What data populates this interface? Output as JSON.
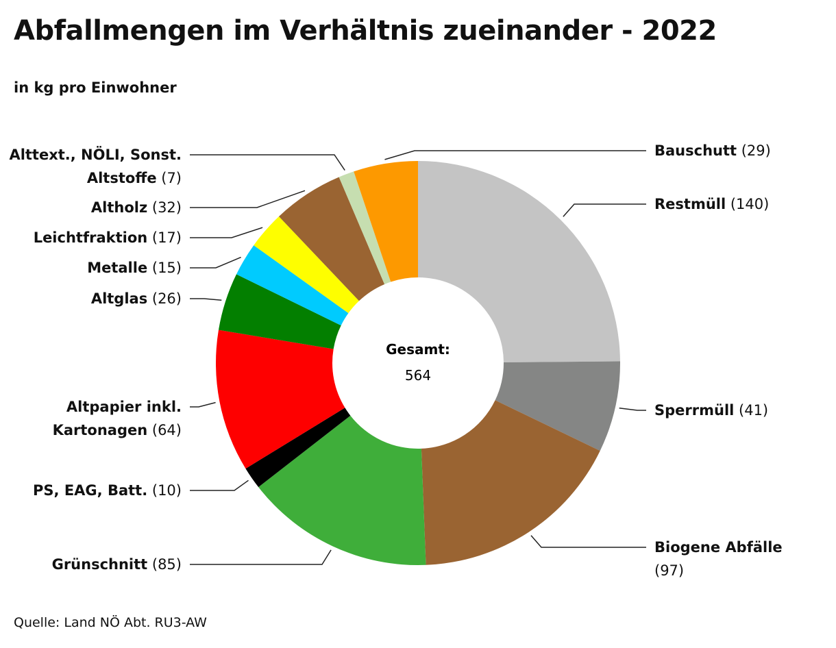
{
  "title": "Abfallmengen im Verhältnis zueinander - 2022",
  "subtitle": "in kg pro Einwohner",
  "source": "Quelle: Land NÖ Abt. RU3-AW",
  "center": {
    "label": "Gesamt:",
    "value": "564"
  },
  "chart_data": {
    "type": "pie",
    "donut": true,
    "title": "Abfallmengen im Verhältnis zueinander - 2022",
    "subtitle": "in kg pro Einwohner",
    "unit": "kg pro Einwohner",
    "total": 564,
    "slices": [
      {
        "name": "Restmüll",
        "value": 140,
        "color": "#c4c4c4",
        "label_lines": [
          [
            "Restmüll",
            " (140)"
          ]
        ]
      },
      {
        "name": "Sperrmüll",
        "value": 41,
        "color": "#858685",
        "label_lines": [
          [
            "Sperrmüll",
            " (41)"
          ]
        ]
      },
      {
        "name": "Biogene Abfälle",
        "value": 97,
        "color": "#9a6432",
        "label_lines": [
          [
            "Biogene Abfälle",
            ""
          ],
          [
            "",
            "(97)"
          ]
        ]
      },
      {
        "name": "Grünschnitt",
        "value": 85,
        "color": "#3fae3a",
        "label_lines": [
          [
            "Grünschnitt",
            " (85)"
          ]
        ]
      },
      {
        "name": "PS, EAG, Batt.",
        "value": 10,
        "color": "#000000",
        "label_lines": [
          [
            "PS, EAG, Batt.",
            " (10)"
          ]
        ]
      },
      {
        "name": "Altpapier inkl. Kartonagen",
        "value": 64,
        "color": "#fe0000",
        "label_lines": [
          [
            "Altpapier inkl.",
            ""
          ],
          [
            "Kartonagen",
            " (64)"
          ]
        ]
      },
      {
        "name": "Altglas",
        "value": 26,
        "color": "#037f00",
        "label_lines": [
          [
            "Altglas",
            " (26)"
          ]
        ]
      },
      {
        "name": "Metalle",
        "value": 15,
        "color": "#00cbfe",
        "label_lines": [
          [
            "Metalle",
            " (15)"
          ]
        ]
      },
      {
        "name": "Leichtfraktion",
        "value": 17,
        "color": "#fefe00",
        "label_lines": [
          [
            "Leichtfraktion",
            " (17)"
          ]
        ]
      },
      {
        "name": "Altholz",
        "value": 32,
        "color": "#9a6432",
        "label_lines": [
          [
            "Altholz",
            " (32)"
          ]
        ]
      },
      {
        "name": "Alttext., NÖLI, Sonst. Altstoffe",
        "value": 7,
        "color": "#c6deb0",
        "label_lines": [
          [
            "Alttext., NÖLI, Sonst.",
            ""
          ],
          [
            "Altstoffe",
            " (7)"
          ]
        ]
      },
      {
        "name": "Bauschutt",
        "value": 29,
        "color": "#fd9900",
        "label_lines": [
          [
            "Bauschutt",
            " (29)"
          ]
        ]
      }
    ]
  }
}
